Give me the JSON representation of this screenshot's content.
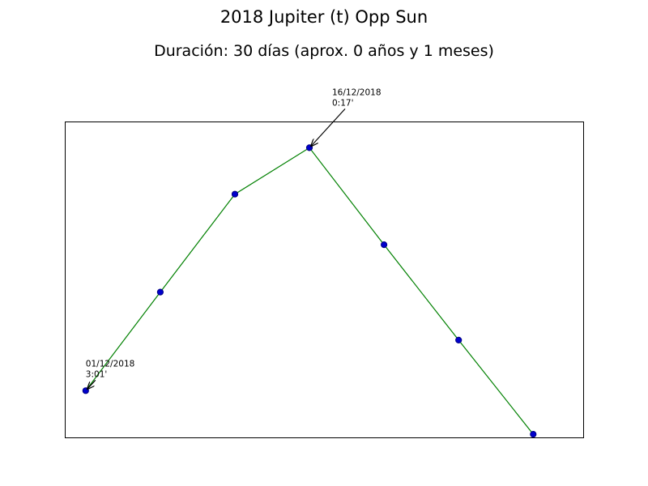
{
  "chart_data": {
    "type": "line",
    "title": "2018 Jupiter (t) Opp Sun",
    "subtitle": "Duración: 30 días (aprox. 0 años y 1 meses)",
    "xlabel": "",
    "ylabel": "",
    "grid": false,
    "axis_ticks": false,
    "line_color": "#008000",
    "marker_color": "#0000cc",
    "marker_edge_color": "#000080",
    "series": [
      {
        "name": "Jupiter (t) Opp Sun",
        "x": [
          0,
          1,
          2,
          3,
          4,
          5,
          6
        ],
        "values": [
          0.148,
          0.46,
          0.77,
          0.917,
          0.61,
          0.308,
          0.01
        ]
      }
    ],
    "xlim": [
      -0.28,
      6.67
    ],
    "ylim": [
      0,
      1
    ],
    "annotations": [
      {
        "point_index": 0,
        "date": "01/12/2018",
        "value": "3:01'"
      },
      {
        "point_index": 3,
        "date": "16/12/2018",
        "value": "0:17'"
      }
    ]
  }
}
